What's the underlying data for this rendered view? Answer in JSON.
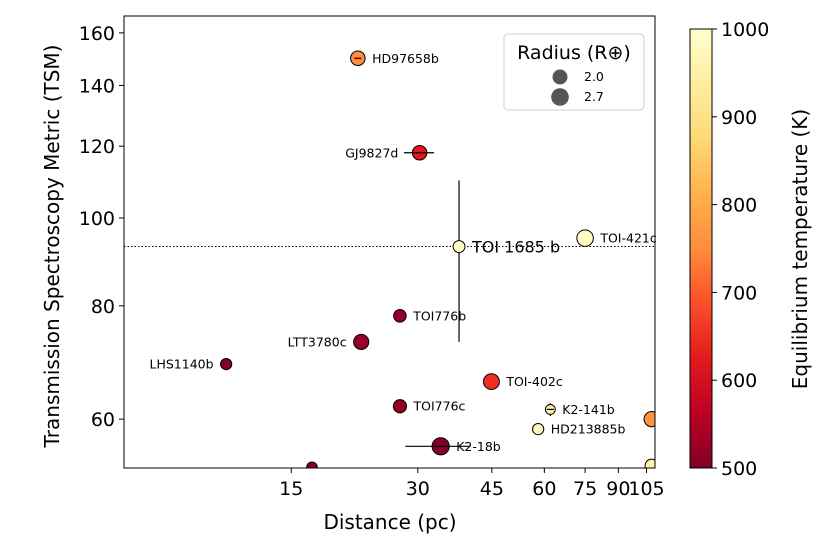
{
  "chart_data": {
    "type": "scatter",
    "title": "",
    "xlabel": "Distance (pc)",
    "ylabel": "Transmission Spectroscopy Metric (TSM)",
    "xscale": "log",
    "yscale": "log",
    "xlim": [
      6,
      110
    ],
    "ylim": [
      53,
      167
    ],
    "xticks": [
      15,
      30,
      45,
      60,
      75,
      90,
      105
    ],
    "xtick_labels": [
      "15",
      "30",
      "45",
      "60",
      "75",
      "90",
      "105"
    ],
    "yticks": [
      60,
      80,
      100,
      120,
      140,
      160
    ],
    "ytick_labels": [
      "60",
      "80",
      "100",
      "120",
      "140",
      "160"
    ],
    "reference_line": {
      "y": 93,
      "style": "dotted"
    },
    "legend": {
      "title": "Radius (R⊕)",
      "entries": [
        {
          "label": "2.0",
          "radius": 2.0
        },
        {
          "label": "2.7",
          "radius": 2.7
        }
      ],
      "position": "top-right"
    },
    "colorbar": {
      "label": "Equilibrium temperature (K)",
      "range": [
        500,
        1000
      ],
      "ticks": [
        500,
        600,
        700,
        800,
        900,
        1000
      ],
      "tick_labels": [
        "500",
        "600",
        "700",
        "800",
        "900",
        "1000"
      ],
      "colormap": "YlOrRd"
    },
    "points": [
      {
        "name": "HD97658b",
        "label": "HD97658b",
        "x": 21.6,
        "y": 150,
        "teq": 750,
        "radius": 2.2,
        "yerr": 1.5,
        "label_side": "right"
      },
      {
        "name": "GJ9827d",
        "label": "GJ9827d",
        "x": 30.3,
        "y": 118,
        "teq": 620,
        "radius": 2.2,
        "xerr": 2.5,
        "label_side": "left"
      },
      {
        "name": "TOI 1685 b",
        "label": "TOI 1685 b",
        "x": 37.6,
        "y": 93,
        "teq": 1000,
        "radius": 1.8,
        "yerr_low": 20,
        "yerr_high": 17,
        "big": true,
        "label_side": "right"
      },
      {
        "name": "TOI-421c",
        "label": "TOI-421c",
        "x": 75,
        "y": 95,
        "teq": 990,
        "radius": 2.5,
        "label_side": "right"
      },
      {
        "name": "TOI776b",
        "label": "TOI776b",
        "x": 27.2,
        "y": 78,
        "teq": 520,
        "radius": 1.9,
        "label_side": "right"
      },
      {
        "name": "LTT3780c",
        "label": "LTT3780c",
        "x": 22.0,
        "y": 73,
        "teq": 520,
        "radius": 2.3,
        "label_side": "left"
      },
      {
        "name": "LHS1140b",
        "label": "LHS1140b",
        "x": 10.5,
        "y": 69,
        "teq": 500,
        "radius": 1.7,
        "label_side": "left"
      },
      {
        "name": "TOI-402c",
        "label": "TOI-402c",
        "x": 44.9,
        "y": 66,
        "teq": 650,
        "radius": 2.4,
        "label_side": "right"
      },
      {
        "name": "TOI776c",
        "label": "TOI776c",
        "x": 27.2,
        "y": 62,
        "teq": 520,
        "radius": 2.0,
        "label_side": "right"
      },
      {
        "name": "K2-141b",
        "label": "K2-141b",
        "x": 62,
        "y": 61.5,
        "teq": 950,
        "radius": 1.5,
        "yerr": 1.0,
        "label_side": "right"
      },
      {
        "name": "HD213885b",
        "label": "HD213885b",
        "x": 58,
        "y": 58.5,
        "teq": 980,
        "radius": 1.7,
        "label_side": "right"
      },
      {
        "name": "K2-18b",
        "label": "K2-18b",
        "x": 34,
        "y": 56,
        "teq": 500,
        "radius": 2.6,
        "xerr": 6,
        "label_side": "right"
      },
      {
        "name": "partial-right",
        "label": "",
        "x": 108,
        "y": 60,
        "teq": 760,
        "radius": 2.3,
        "label_side": "none"
      },
      {
        "name": "partial-bottom-right",
        "label": "",
        "x": 108,
        "y": 53.3,
        "teq": 950,
        "radius": 2.0,
        "label_side": "none"
      },
      {
        "name": "partial-bottom",
        "label": "",
        "x": 16.8,
        "y": 53.1,
        "teq": 500,
        "radius": 1.6,
        "label_side": "none"
      }
    ]
  }
}
